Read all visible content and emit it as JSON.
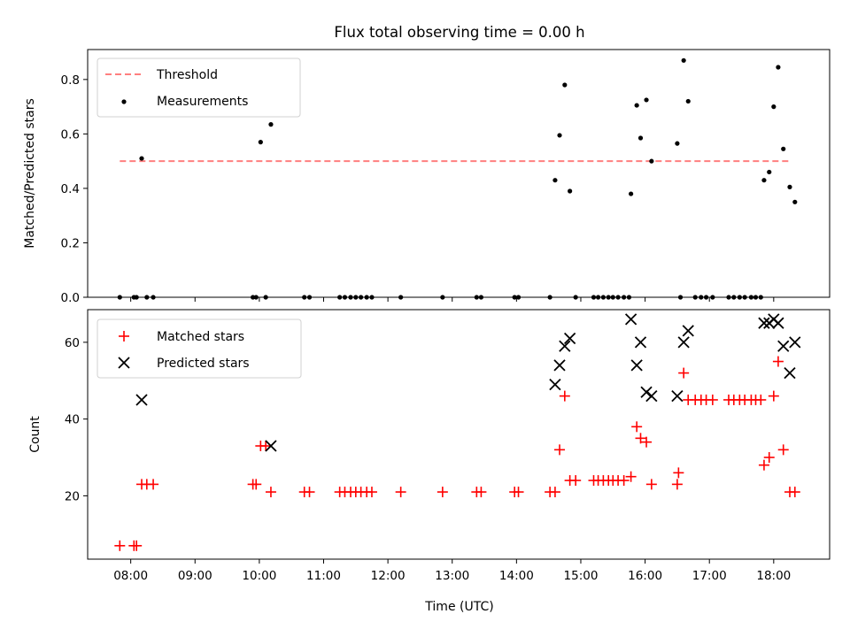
{
  "chart_data": [
    {
      "type": "scatter",
      "title": "Flux total observing time = 0.00 h",
      "ylabel": "Matched/Predicted stars",
      "ylim": [
        0,
        0.91
      ],
      "yticks": [
        0.0,
        0.2,
        0.4,
        0.6,
        0.8
      ],
      "ytick_labels": [
        "0.0",
        "0.2",
        "0.4",
        "0.6",
        "0.8"
      ],
      "legend": {
        "placement": "upper-left",
        "entries": [
          "Threshold",
          "Measurements"
        ]
      },
      "threshold": {
        "name": "Threshold",
        "value": 0.5,
        "x_start": 7.83,
        "x_end": 18.28,
        "color": "#ff7f7f"
      },
      "series": [
        {
          "name": "Measurements",
          "color": "#000000",
          "marker": "dot",
          "points": [
            [
              7.83,
              0.0
            ],
            [
              8.05,
              0.0
            ],
            [
              8.09,
              0.0
            ],
            [
              8.17,
              0.51
            ],
            [
              8.25,
              0.0
            ],
            [
              8.35,
              0.0
            ],
            [
              9.9,
              0.0
            ],
            [
              9.95,
              0.0
            ],
            [
              10.02,
              0.57
            ],
            [
              10.1,
              0.0
            ],
            [
              10.18,
              0.635
            ],
            [
              10.7,
              0.0
            ],
            [
              10.78,
              0.0
            ],
            [
              11.25,
              0.0
            ],
            [
              11.33,
              0.0
            ],
            [
              11.42,
              0.0
            ],
            [
              11.5,
              0.0
            ],
            [
              11.58,
              0.0
            ],
            [
              11.67,
              0.0
            ],
            [
              11.75,
              0.0
            ],
            [
              12.2,
              0.0
            ],
            [
              12.85,
              0.0
            ],
            [
              13.38,
              0.0
            ],
            [
              13.45,
              0.0
            ],
            [
              13.97,
              0.0
            ],
            [
              14.03,
              0.0
            ],
            [
              14.52,
              0.0
            ],
            [
              14.6,
              0.43
            ],
            [
              14.67,
              0.595
            ],
            [
              14.75,
              0.78
            ],
            [
              14.83,
              0.39
            ],
            [
              14.92,
              0.0
            ],
            [
              15.2,
              0.0
            ],
            [
              15.27,
              0.0
            ],
            [
              15.35,
              0.0
            ],
            [
              15.43,
              0.0
            ],
            [
              15.5,
              0.0
            ],
            [
              15.58,
              0.0
            ],
            [
              15.67,
              0.0
            ],
            [
              15.75,
              0.0
            ],
            [
              15.78,
              0.38
            ],
            [
              15.87,
              0.705
            ],
            [
              15.93,
              0.585
            ],
            [
              16.02,
              0.725
            ],
            [
              16.1,
              0.5
            ],
            [
              16.5,
              0.565
            ],
            [
              16.55,
              0.0
            ],
            [
              16.6,
              0.87
            ],
            [
              16.67,
              0.72
            ],
            [
              16.78,
              0.0
            ],
            [
              16.87,
              0.0
            ],
            [
              16.95,
              0.0
            ],
            [
              17.05,
              0.0
            ],
            [
              17.3,
              0.0
            ],
            [
              17.38,
              0.0
            ],
            [
              17.47,
              0.0
            ],
            [
              17.55,
              0.0
            ],
            [
              17.65,
              0.0
            ],
            [
              17.72,
              0.0
            ],
            [
              17.8,
              0.0
            ],
            [
              17.85,
              0.43
            ],
            [
              17.93,
              0.46
            ],
            [
              18.0,
              0.7
            ],
            [
              18.07,
              0.845
            ],
            [
              18.15,
              0.545
            ],
            [
              18.25,
              0.405
            ],
            [
              18.33,
              0.35
            ]
          ]
        }
      ]
    },
    {
      "type": "scatter",
      "xlabel": "Time (UTC)",
      "ylabel": "Count",
      "ylim": [
        3.5,
        68.5
      ],
      "yticks": [
        20,
        40,
        60
      ],
      "ytick_labels": [
        "20",
        "40",
        "60"
      ],
      "xlim": [
        7.33,
        18.87
      ],
      "xticks": [
        8,
        9,
        10,
        11,
        12,
        13,
        14,
        15,
        16,
        17,
        18
      ],
      "xtick_labels": [
        "08:00",
        "09:00",
        "10:00",
        "11:00",
        "12:00",
        "13:00",
        "14:00",
        "15:00",
        "16:00",
        "17:00",
        "18:00"
      ],
      "legend": {
        "placement": "upper-left",
        "entries": [
          "Matched stars",
          "Predicted stars"
        ]
      },
      "series": [
        {
          "name": "Matched stars",
          "color": "#ff0000",
          "marker": "plus",
          "points": [
            [
              7.83,
              7
            ],
            [
              8.05,
              7
            ],
            [
              8.09,
              7
            ],
            [
              8.17,
              23
            ],
            [
              8.25,
              23
            ],
            [
              8.35,
              23
            ],
            [
              9.9,
              23
            ],
            [
              9.95,
              23
            ],
            [
              10.02,
              33
            ],
            [
              10.1,
              33
            ],
            [
              10.18,
              21
            ],
            [
              10.7,
              21
            ],
            [
              10.78,
              21
            ],
            [
              11.25,
              21
            ],
            [
              11.33,
              21
            ],
            [
              11.42,
              21
            ],
            [
              11.5,
              21
            ],
            [
              11.58,
              21
            ],
            [
              11.67,
              21
            ],
            [
              11.75,
              21
            ],
            [
              12.2,
              21
            ],
            [
              12.85,
              21
            ],
            [
              13.38,
              21
            ],
            [
              13.45,
              21
            ],
            [
              13.97,
              21
            ],
            [
              14.03,
              21
            ],
            [
              14.52,
              21
            ],
            [
              14.6,
              21
            ],
            [
              14.67,
              32
            ],
            [
              14.75,
              46
            ],
            [
              14.83,
              24
            ],
            [
              14.92,
              24
            ],
            [
              15.2,
              24
            ],
            [
              15.27,
              24
            ],
            [
              15.35,
              24
            ],
            [
              15.43,
              24
            ],
            [
              15.5,
              24
            ],
            [
              15.58,
              24
            ],
            [
              15.67,
              24
            ],
            [
              15.78,
              25
            ],
            [
              15.87,
              38
            ],
            [
              15.93,
              35
            ],
            [
              16.02,
              34
            ],
            [
              16.1,
              23
            ],
            [
              16.5,
              23
            ],
            [
              16.52,
              26
            ],
            [
              16.6,
              52
            ],
            [
              16.67,
              45
            ],
            [
              16.78,
              45
            ],
            [
              16.87,
              45
            ],
            [
              16.95,
              45
            ],
            [
              17.05,
              45
            ],
            [
              17.3,
              45
            ],
            [
              17.38,
              45
            ],
            [
              17.47,
              45
            ],
            [
              17.55,
              45
            ],
            [
              17.65,
              45
            ],
            [
              17.72,
              45
            ],
            [
              17.8,
              45
            ],
            [
              17.85,
              28
            ],
            [
              17.93,
              30
            ],
            [
              18.0,
              46
            ],
            [
              18.07,
              55
            ],
            [
              18.15,
              32
            ],
            [
              18.25,
              21
            ],
            [
              18.33,
              21
            ]
          ]
        },
        {
          "name": "Predicted stars",
          "color": "#000000",
          "marker": "x",
          "points": [
            [
              8.17,
              45
            ],
            [
              10.18,
              33
            ],
            [
              14.6,
              49
            ],
            [
              14.67,
              54
            ],
            [
              14.75,
              59
            ],
            [
              14.83,
              61
            ],
            [
              15.78,
              66
            ],
            [
              15.87,
              54
            ],
            [
              15.93,
              60
            ],
            [
              16.02,
              47
            ],
            [
              16.1,
              46
            ],
            [
              16.5,
              46
            ],
            [
              16.6,
              60
            ],
            [
              16.67,
              63
            ],
            [
              17.85,
              65
            ],
            [
              17.93,
              65
            ],
            [
              18.0,
              66
            ],
            [
              18.07,
              65
            ],
            [
              18.15,
              59
            ],
            [
              18.25,
              52
            ],
            [
              18.33,
              60
            ]
          ]
        }
      ]
    }
  ]
}
